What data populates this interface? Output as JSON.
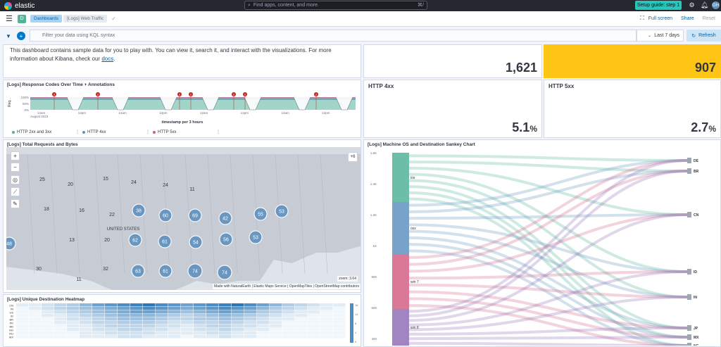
{
  "header": {
    "brand": "elastic",
    "search_placeholder": "Find apps, content, and more.",
    "search_shortcut": "⌘/",
    "setup_guide": "Setup guide: step 1",
    "avatar_initials": "GH"
  },
  "nav": {
    "space_initial": "D",
    "breadcrumbs": [
      "Dashboards",
      "[Logs] Web Traffic"
    ],
    "links": {
      "full_screen": "Full screen",
      "share": "Share",
      "reset": "Reset"
    }
  },
  "query": {
    "placeholder": "Filter your data using KQL syntax",
    "time_range": "Last 7 days",
    "refresh_label": "Refresh"
  },
  "intro": {
    "text_before": "This dashboard contains sample data for you to play with. You can view it, search it, and interact with the visualizations. For more information about Kibana, check our ",
    "link": "docs",
    "text_after": "."
  },
  "metrics": {
    "top_left_value": "1,621",
    "top_right_value": "907",
    "http4xx_label": "HTTP 4xx",
    "http4xx_value": "5.1",
    "http5xx_label": "HTTP 5xx",
    "http5xx_value": "2.7",
    "pct_symbol": "%"
  },
  "response_codes": {
    "title": "[Logs] Response Codes Over Time + Annotations",
    "y_axis_title": "Req...",
    "y_ticks": [
      "100%",
      "50%",
      "0%"
    ],
    "x_first_label": "12am",
    "x_first_sublabel": "August 2023",
    "x_ticks": [
      "12am",
      "12pm",
      "12am",
      "12pm",
      "12am",
      "12pm",
      "12am",
      "12pm"
    ],
    "x_axis_title": "timestamp per 3 hours",
    "legend": [
      "HTTP 2xx and 3xx",
      "HTTP 4xx",
      "HTTP 5xx"
    ],
    "legend_more": "⋮",
    "annotation_badges": [
      "3",
      "2",
      "2",
      "2",
      "2",
      "2"
    ],
    "colors": {
      "2xx": "#54b399",
      "4xx": "#6092c0",
      "5xx": "#d36086",
      "annotation": "#bd271e"
    }
  },
  "map": {
    "title": "[Logs] Total Requests and Bytes",
    "country_label": "UNITED STATES",
    "small_counts": [
      "25",
      "20",
      "15",
      "24",
      "24",
      "11",
      "18",
      "16",
      "22",
      "20",
      "13",
      "30",
      "32",
      "11"
    ],
    "cluster_counts": [
      "38",
      "60",
      "69",
      "42",
      "55",
      "53",
      "48",
      "62",
      "61",
      "54",
      "56",
      "53",
      "63",
      "61",
      "74",
      "74"
    ],
    "attribution": "Made with NaturalEarth | Elastic Maps Service | OpenMapTiles | OpenStreetMap contributors",
    "scale": "zoom: 3.64",
    "layers_button": "+6",
    "controls": [
      "plus-icon",
      "minus-icon",
      "globe-icon",
      "ruler-icon",
      "draw-icon"
    ]
  },
  "sankey": {
    "title": "[Logs] Machine OS and Destination Sankey Chart",
    "y_ticks": [
      "1.6K",
      "1.4K",
      "1.2K",
      "1K",
      "800",
      "600",
      "400"
    ],
    "sources": [
      "ios",
      "osx",
      "win 7",
      "win 8"
    ],
    "destinations": [
      "DE",
      "BR",
      "CN",
      "ID",
      "IN",
      "JP",
      "MX",
      "NG"
    ],
    "colors": {
      "ios": "#54b399",
      "osx": "#6092c0",
      "win 7": "#d36086",
      "win 8": "#9170b8"
    }
  },
  "heatmap": {
    "title": "[Logs] Unique Destination Heatmap",
    "rows": [
      "CN",
      "IN",
      "US",
      "ID",
      "BR",
      "PK",
      "BD",
      "NG",
      "RU",
      "MX"
    ],
    "legend_ticks": [
      "16",
      "12",
      "8",
      "4",
      "0"
    ],
    "color": "#2171b5"
  }
}
